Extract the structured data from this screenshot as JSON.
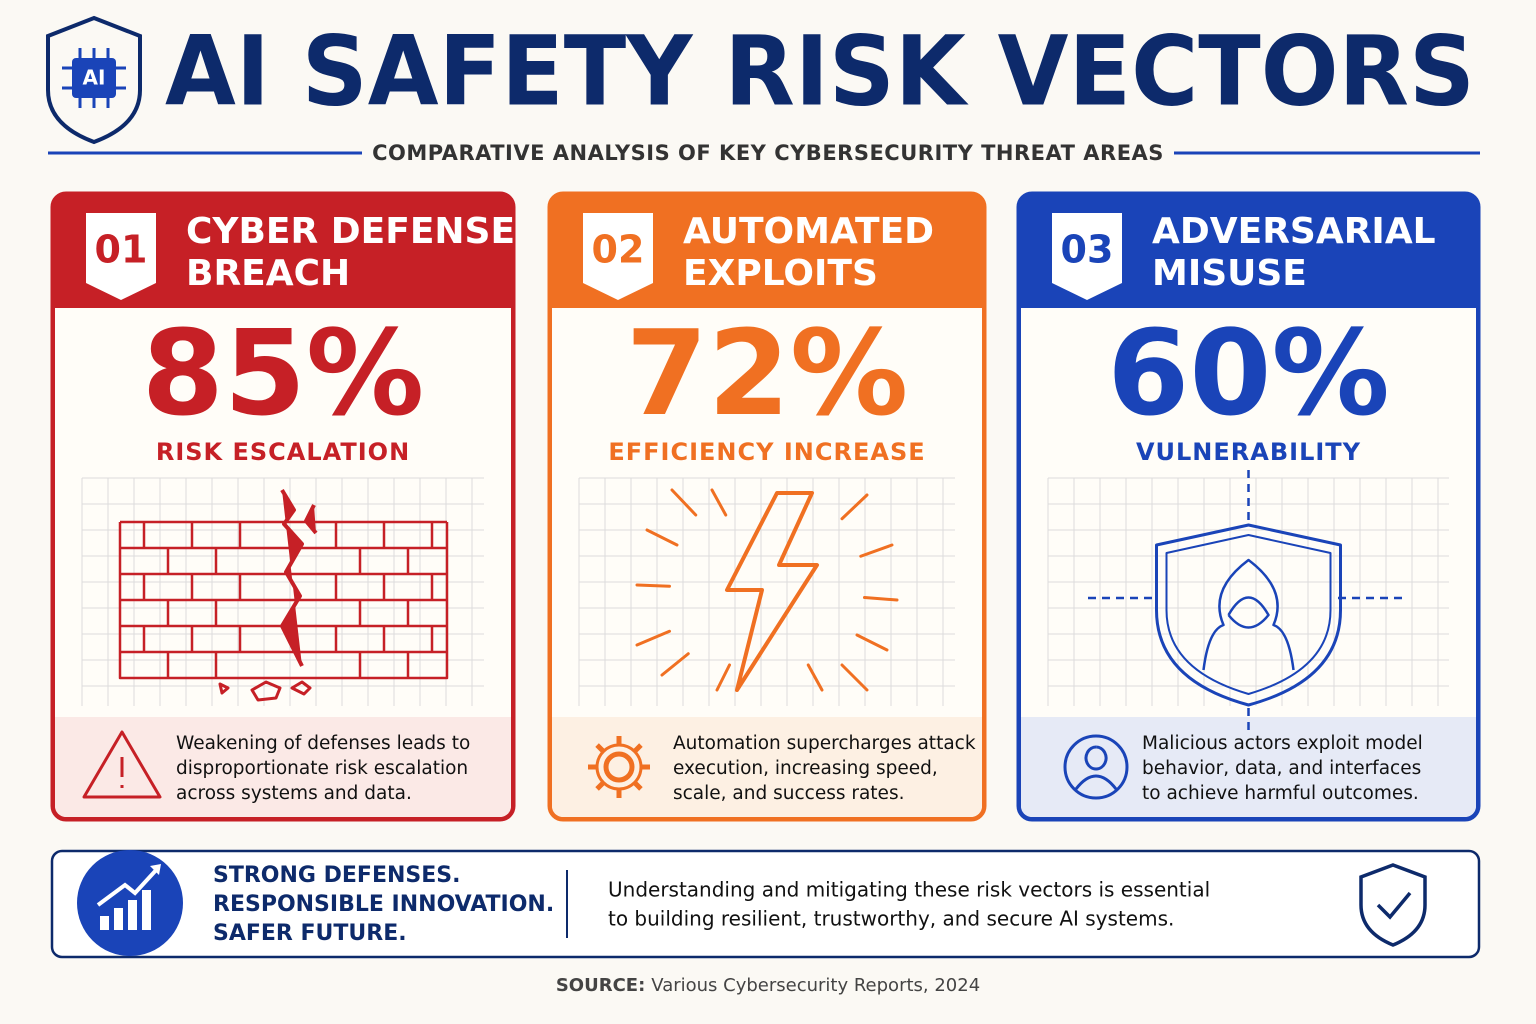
{
  "header": {
    "logo": "AI",
    "title": "AI SAFETY RISK VECTORS",
    "subtitle": "COMPARATIVE ANALYSIS OF KEY CYBERSECURITY THREAT AREAS"
  },
  "cards": [
    {
      "number": "01",
      "title": [
        "CYBER DEFENSE",
        "BREACH"
      ],
      "stat": "85%",
      "stat_label": "RISK ESCALATION",
      "description": [
        "Weakening of defenses leads to",
        "disproportionate risk escalation",
        "across systems and data."
      ]
    },
    {
      "number": "02",
      "title": [
        "AUTOMATED",
        "EXPLOITS"
      ],
      "stat": "72%",
      "stat_label": "EFFICIENCY INCREASE",
      "description": [
        "Automation supercharges attack",
        "execution, increasing speed,",
        "scale, and success rates."
      ]
    },
    {
      "number": "03",
      "title": [
        "ADVERSARIAL",
        "MISUSE"
      ],
      "stat": "60%",
      "stat_label": "VULNERABILITY",
      "description": [
        "Malicious actors exploit model",
        "behavior, data, and interfaces",
        "to achieve harmful outcomes."
      ]
    }
  ],
  "banner": {
    "tagline": [
      "STRONG DEFENSES.",
      "RESPONSIBLE INNOVATION.",
      "SAFER FUTURE."
    ],
    "message": [
      "Understanding and mitigating these risk vectors is essential",
      "to building resilient, trustworthy, and secure AI systems."
    ]
  },
  "source": {
    "label": "SOURCE:",
    "text": "Various Cybersecurity Reports, 2024"
  }
}
